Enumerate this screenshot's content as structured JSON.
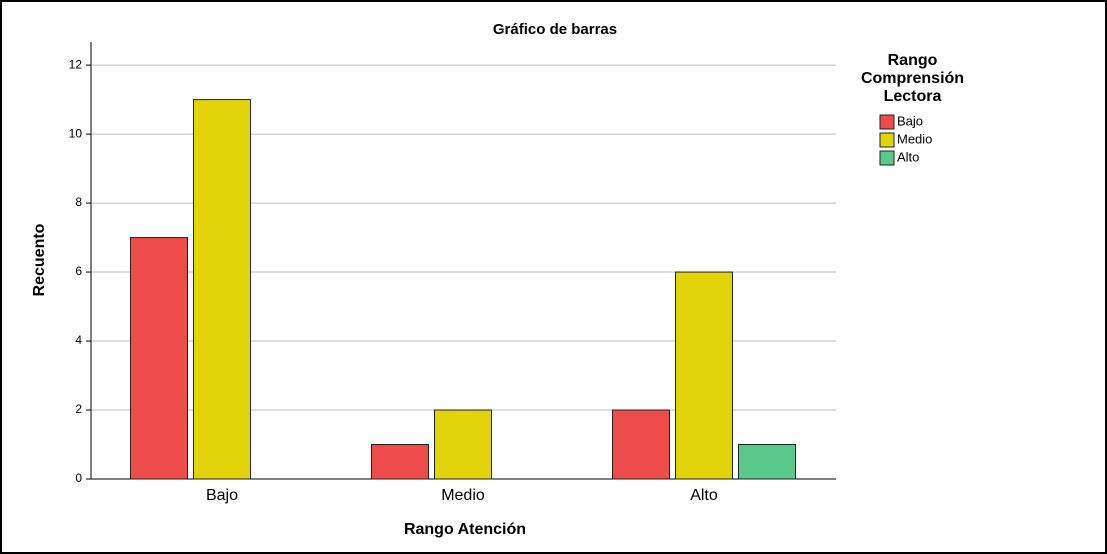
{
  "chart_data": {
    "type": "bar",
    "title": "Gráfico de barras",
    "x_label": "Rango Atención",
    "y_label": "Recuento",
    "legend_title": "Rango Comprensión Lectora",
    "categories": [
      "Bajo",
      "Medio",
      "Alto"
    ],
    "series": [
      {
        "name": "Bajo",
        "color": "#ee4b4b",
        "values": [
          7,
          1,
          2
        ]
      },
      {
        "name": "Medio",
        "color": "#e2d40b",
        "values": [
          11,
          2,
          6
        ]
      },
      {
        "name": "Alto",
        "color": "#5ac88a",
        "values": [
          null,
          null,
          1
        ]
      }
    ],
    "ylim": [
      0,
      12.67
    ],
    "yticks": [
      0,
      2,
      4,
      6,
      8,
      10,
      12
    ],
    "grid": true,
    "legend": "right"
  }
}
